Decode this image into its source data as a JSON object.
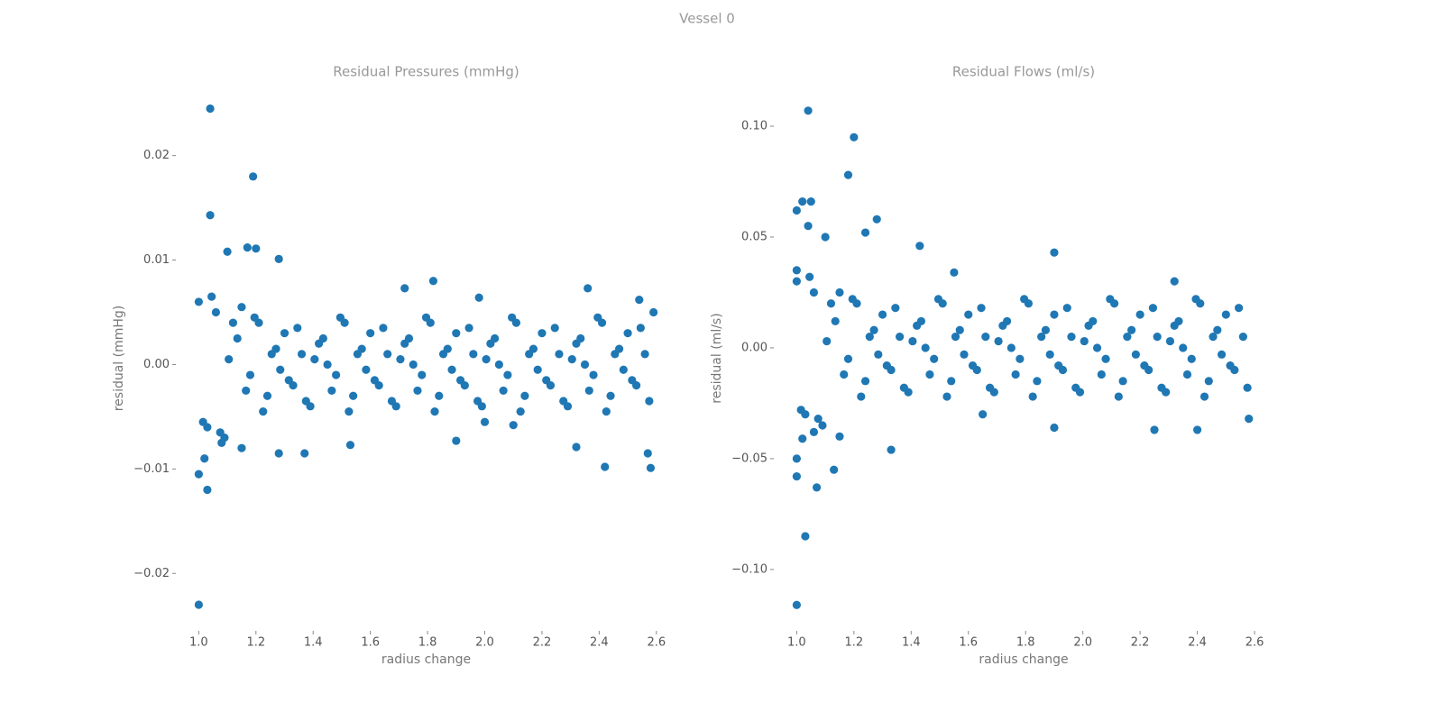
{
  "title": "Vessel 0",
  "chart_data": [
    {
      "type": "scatter",
      "title": "Residual Pressures (mmHg)",
      "xlabel": "radius change",
      "ylabel": "residual (mmHg)",
      "color": "#1f77b4",
      "xlim": [
        0.92,
        2.67
      ],
      "ylim": [
        -0.0255,
        0.0267
      ],
      "xticks": [
        {
          "value": 1.0,
          "label": "1.0"
        },
        1.2,
        1.4,
        1.6,
        1.8,
        {
          "value": 2.0,
          "label": "2.0"
        },
        2.2,
        2.4,
        2.6
      ],
      "yticks": [
        {
          "value": -0.02,
          "label": "−0.02"
        },
        {
          "value": -0.01,
          "label": "−0.01"
        },
        {
          "value": 0,
          "label": "0.00"
        },
        0.01,
        0.02
      ],
      "x": [
        1.04,
        1.19,
        1.04,
        1.0,
        1.03,
        1.0,
        1.02,
        1.28,
        1.17,
        1.2,
        1.1,
        1.82,
        2.36,
        2.42,
        2.58,
        2.57,
        2.32,
        1.9,
        1.53,
        1.37,
        1.28,
        2.54,
        1.98,
        1.72,
        2.59,
        2.0,
        2.1,
        1.15,
        1.08,
        1.0,
        1.03,
        1.06,
        1.09,
        1.12,
        1.15,
        1.18,
        1.21,
        1.24,
        1.27,
        1.3,
        1.33,
        1.36,
        1.39,
        1.42,
        1.45,
        1.48,
        1.51,
        1.54,
        1.57,
        1.6,
        1.63,
        1.66,
        1.69,
        1.72,
        1.75,
        1.78,
        1.81,
        1.84,
        1.87,
        1.9,
        1.93,
        1.96,
        1.99,
        2.02,
        2.05,
        2.08,
        2.11,
        2.14,
        2.17,
        2.2,
        2.23,
        2.26,
        2.29,
        2.32,
        2.35,
        2.38,
        2.41,
        2.44,
        2.47,
        2.5,
        2.53,
        2.56,
        1.015,
        1.045,
        1.075,
        1.105,
        1.135,
        1.165,
        1.195,
        1.225,
        1.255,
        1.285,
        1.315,
        1.345,
        1.375,
        1.405,
        1.435,
        1.465,
        1.495,
        1.525,
        1.555,
        1.585,
        1.615,
        1.645,
        1.675,
        1.705,
        1.735,
        1.765,
        1.795,
        1.825,
        1.855,
        1.885,
        1.915,
        1.945,
        1.975,
        2.005,
        2.035,
        2.065,
        2.095,
        2.125,
        2.155,
        2.185,
        2.215,
        2.245,
        2.275,
        2.305,
        2.335,
        2.365,
        2.395,
        2.425,
        2.455,
        2.485,
        2.515,
        2.545,
        2.575
      ],
      "values": [
        0.0245,
        0.018,
        0.0143,
        -0.023,
        -0.012,
        -0.0105,
        -0.009,
        0.0101,
        0.0112,
        0.0111,
        0.0108,
        0.008,
        0.0073,
        -0.0098,
        -0.0099,
        -0.0085,
        -0.0079,
        -0.0073,
        -0.0077,
        -0.0085,
        -0.0085,
        0.0062,
        0.0064,
        0.0073,
        0.005,
        -0.0055,
        -0.0058,
        -0.008,
        -0.0075,
        0.006,
        -0.006,
        0.005,
        -0.007,
        0.004,
        0.0055,
        -0.001,
        0.004,
        -0.003,
        0.0015,
        0.003,
        -0.002,
        0.001,
        -0.004,
        0.002,
        0,
        -0.001,
        0.004,
        -0.003,
        0.0015,
        0.003,
        -0.002,
        0.001,
        -0.004,
        0.002,
        0,
        -0.001,
        0.004,
        -0.003,
        0.0015,
        0.003,
        -0.002,
        0.001,
        -0.004,
        0.002,
        0,
        -0.001,
        0.004,
        -0.003,
        0.0015,
        0.003,
        -0.002,
        0.001,
        -0.004,
        0.002,
        0,
        -0.001,
        0.004,
        -0.003,
        0.0015,
        0.003,
        -0.002,
        0.001,
        -0.0055,
        0.0065,
        -0.0065,
        0.0005,
        0.0025,
        -0.0025,
        0.0045,
        -0.0045,
        0.001,
        -0.0005,
        -0.0015,
        0.0035,
        -0.0035,
        0.0005,
        0.0025,
        -0.0025,
        0.0045,
        -0.0045,
        0.001,
        -0.0005,
        -0.0015,
        0.0035,
        -0.0035,
        0.0005,
        0.0025,
        -0.0025,
        0.0045,
        -0.0045,
        0.001,
        -0.0005,
        -0.0015,
        0.0035,
        -0.0035,
        0.0005,
        0.0025,
        -0.0025,
        0.0045,
        -0.0045,
        0.001,
        -0.0005,
        -0.0015,
        0.0035,
        -0.0035,
        0.0005,
        0.0025,
        -0.0025,
        0.0045,
        -0.0045,
        0.001,
        -0.0005,
        -0.0015,
        0.0035,
        -0.0035
      ]
    },
    {
      "type": "scatter",
      "title": "Residual Flows (ml/s)",
      "xlabel": "radius change",
      "ylabel": "residual (ml/s)",
      "color": "#1f77b4",
      "xlim": [
        0.92,
        2.666
      ],
      "ylim": [
        -0.1277,
        0.1183
      ],
      "xticks": [
        {
          "value": 1.0,
          "label": "1.0"
        },
        1.2,
        1.4,
        1.6,
        1.8,
        {
          "value": 2.0,
          "label": "2.0"
        },
        2.2,
        2.4,
        2.6
      ],
      "yticks": [
        {
          "value": -0.1,
          "label": "−0.10"
        },
        {
          "value": -0.05,
          "label": "−0.05"
        },
        {
          "value": 0,
          "label": "0.00"
        },
        0.05,
        {
          "value": 0.1,
          "label": "0.10"
        }
      ],
      "x": [
        1.04,
        1.2,
        1.18,
        1.0,
        1.02,
        1.05,
        1.28,
        1.43,
        1.9,
        1.0,
        1.03,
        1.07,
        1.0,
        1.13,
        1.33,
        1.9,
        2.25,
        2.4,
        2.58,
        1.04,
        1.1,
        1.24,
        1.0,
        1.02,
        1.55,
        2.32,
        1.0,
        1.06,
        1.15,
        1.65,
        1.0,
        1.03,
        1.06,
        1.09,
        1.12,
        1.15,
        1.18,
        1.21,
        1.24,
        1.27,
        1.3,
        1.33,
        1.36,
        1.39,
        1.42,
        1.45,
        1.48,
        1.51,
        1.54,
        1.57,
        1.6,
        1.63,
        1.66,
        1.69,
        1.72,
        1.75,
        1.78,
        1.81,
        1.84,
        1.87,
        1.9,
        1.93,
        1.96,
        1.99,
        2.02,
        2.05,
        2.08,
        2.11,
        2.14,
        2.17,
        2.2,
        2.23,
        2.26,
        2.29,
        2.32,
        2.35,
        2.38,
        2.41,
        2.44,
        2.47,
        2.5,
        2.53,
        2.56,
        1.015,
        1.045,
        1.075,
        1.105,
        1.135,
        1.165,
        1.195,
        1.225,
        1.255,
        1.285,
        1.315,
        1.345,
        1.375,
        1.405,
        1.435,
        1.465,
        1.495,
        1.525,
        1.555,
        1.585,
        1.615,
        1.645,
        1.675,
        1.705,
        1.735,
        1.765,
        1.795,
        1.825,
        1.855,
        1.885,
        1.915,
        1.945,
        1.975,
        2.005,
        2.035,
        2.065,
        2.095,
        2.125,
        2.155,
        2.185,
        2.215,
        2.245,
        2.275,
        2.305,
        2.335,
        2.365,
        2.395,
        2.425,
        2.455,
        2.485,
        2.515,
        2.545,
        2.575
      ],
      "values": [
        0.107,
        0.095,
        0.078,
        0.062,
        0.066,
        0.066,
        0.058,
        0.046,
        0.043,
        -0.116,
        -0.085,
        -0.063,
        -0.058,
        -0.055,
        -0.046,
        -0.036,
        -0.037,
        -0.037,
        -0.032,
        0.055,
        0.05,
        0.052,
        -0.05,
        -0.041,
        0.034,
        0.03,
        0.035,
        -0.038,
        -0.04,
        -0.03,
        0.03,
        -0.03,
        0.025,
        -0.035,
        0.02,
        0.025,
        -0.005,
        0.02,
        -0.015,
        0.008,
        0.015,
        -0.01,
        0.005,
        -0.02,
        0.01,
        0,
        -0.005,
        0.02,
        -0.015,
        0.008,
        0.015,
        -0.01,
        0.005,
        -0.02,
        0.01,
        0,
        -0.005,
        0.02,
        -0.015,
        0.008,
        0.015,
        -0.01,
        0.005,
        -0.02,
        0.01,
        0,
        -0.005,
        0.02,
        -0.015,
        0.008,
        0.015,
        -0.01,
        0.005,
        -0.02,
        0.01,
        0,
        -0.005,
        0.02,
        -0.015,
        0.008,
        0.015,
        -0.01,
        0.005,
        -0.028,
        0.032,
        -0.032,
        0.003,
        0.012,
        -0.012,
        0.022,
        -0.022,
        0.005,
        -0.003,
        -0.008,
        0.018,
        -0.018,
        0.003,
        0.012,
        -0.012,
        0.022,
        -0.022,
        0.005,
        -0.003,
        -0.008,
        0.018,
        -0.018,
        0.003,
        0.012,
        -0.012,
        0.022,
        -0.022,
        0.005,
        -0.003,
        -0.008,
        0.018,
        -0.018,
        0.003,
        0.012,
        -0.012,
        0.022,
        -0.022,
        0.005,
        -0.003,
        -0.008,
        0.018,
        -0.018,
        0.003,
        0.012,
        -0.012,
        0.022,
        -0.022,
        0.005,
        -0.003,
        -0.008,
        0.018,
        -0.018
      ]
    }
  ]
}
